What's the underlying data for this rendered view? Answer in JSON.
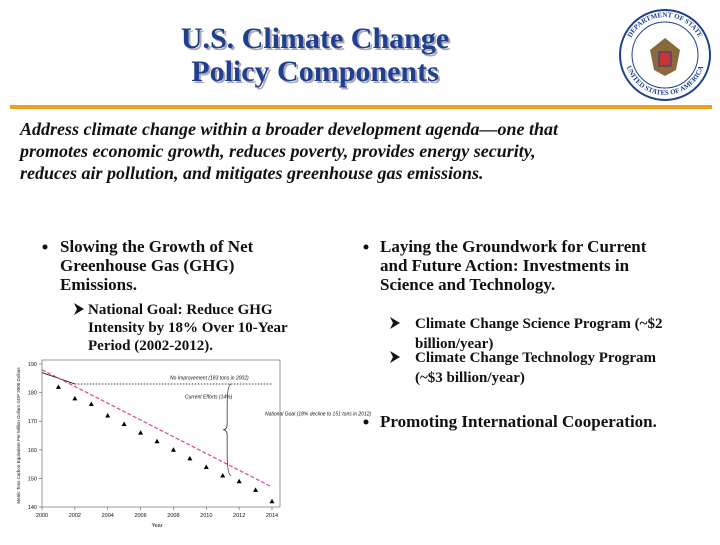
{
  "header": {
    "title_lines": [
      "U.S. Climate Change",
      "Policy Components"
    ],
    "seal_top": "DEPARTMENT OF STATE",
    "seal_bottom": "UNITED STATES OF AMERICA"
  },
  "intro_lines": [
    "Address climate change within a broader development agenda—one that",
    "promotes economic growth, reduces poverty, provides energy security,",
    "reduces air pollution, and mitigates greenhouse gas emissions."
  ],
  "left": {
    "bullet_lines": [
      "Slowing the Growth of Net",
      "Greenhouse Gas (GHG)",
      "Emissions."
    ],
    "sub_lines": [
      "National Goal:  Reduce GHG",
      "Intensity by 18% Over 10-Year",
      "Period (2002-2012)."
    ]
  },
  "right": {
    "bullet_lines": [
      "Laying the Groundwork for Current",
      "and Future Action:  Investments in",
      "Science and Technology."
    ],
    "subs": [
      [
        "Climate Change Science Program (~$2",
        "billion/year)"
      ],
      [
        "Climate Change Technology Program",
        "(~$3 billion/year)"
      ]
    ],
    "bullet2": "Promoting International Cooperation."
  },
  "chart_data": {
    "type": "line",
    "x_label": "Year",
    "y_label": "Metric Tons Carbon Equivalent Per Million Dollars GDP 2000 Dollars",
    "xlim": [
      2000,
      2014
    ],
    "xticks": [
      2000,
      2002,
      2004,
      2006,
      2008,
      2010,
      2012,
      2014
    ],
    "ylim": [
      140,
      190
    ],
    "yticks": [
      140,
      150,
      160,
      170,
      180,
      190
    ],
    "annotations": [
      "No Improvement (183 tons in 2002)",
      "Current Efforts (14%)",
      "National Goal (18% decline to 151 tons in 2012)"
    ],
    "series": [
      {
        "color": "#000000",
        "marker": "triangle",
        "x": [
          2001,
          2002,
          2003,
          2004,
          2005,
          2006,
          2007,
          2008,
          2009,
          2010,
          2011,
          2012,
          2013,
          2014
        ],
        "values": [
          182,
          178,
          176,
          172,
          169,
          166,
          163,
          160,
          157,
          154,
          151,
          149,
          146,
          142
        ]
      },
      {
        "color": "#000000",
        "marker": "line",
        "x": [
          2000,
          2001,
          2002
        ],
        "values": [
          187,
          185,
          183
        ]
      },
      {
        "color": "#e0409a",
        "marker": "dash",
        "x": [
          2000,
          2014
        ],
        "values": [
          188,
          147
        ]
      },
      {
        "color": "#000000",
        "marker": "dot",
        "x": [
          2002,
          2014
        ],
        "values": [
          183,
          183
        ]
      }
    ]
  }
}
